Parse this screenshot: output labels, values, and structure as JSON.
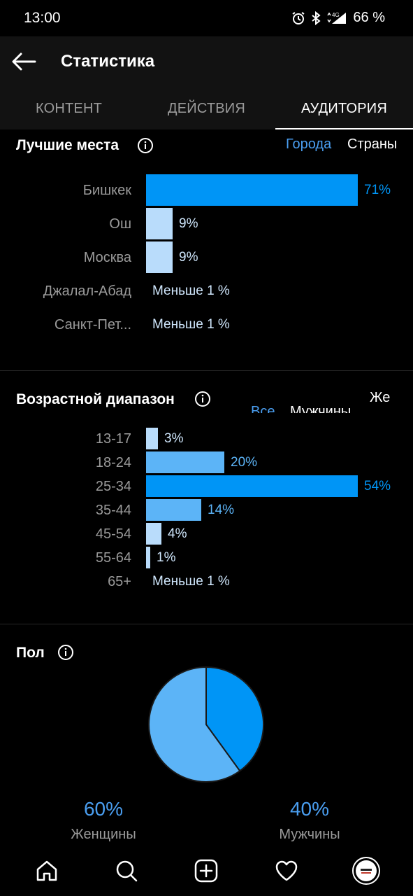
{
  "status": {
    "time": "13:00",
    "battery": "66 %",
    "network": "4G"
  },
  "header": {
    "title": "Статистика"
  },
  "tabs": [
    {
      "label": "КОНТЕНТ",
      "active": false
    },
    {
      "label": "ДЕЙСТВИЯ",
      "active": false
    },
    {
      "label": "АУДИТОРИЯ",
      "active": true
    }
  ],
  "top_places": {
    "title": "Лучшие места",
    "filter_cities": "Города",
    "filter_countries": "Страны",
    "rows": [
      {
        "label": "Бишкек",
        "value": "71%",
        "pct": 71
      },
      {
        "label": "Ош",
        "value": "9%",
        "pct": 9
      },
      {
        "label": "Москва",
        "value": "9%",
        "pct": 9
      },
      {
        "label": "Джалал-Абад",
        "value": "Меньше 1 %",
        "pct": 0
      },
      {
        "label": "Санкт-Пет...",
        "value": "Меньше 1 %",
        "pct": 0
      }
    ]
  },
  "age_range": {
    "title": "Возрастной диапазон",
    "filter_all": "Все",
    "filter_men": "Мужчины",
    "filter_women": "Же",
    "rows": [
      {
        "label": "13-17",
        "value": "3%",
        "pct": 3
      },
      {
        "label": "18-24",
        "value": "20%",
        "pct": 20
      },
      {
        "label": "25-34",
        "value": "54%",
        "pct": 54
      },
      {
        "label": "35-44",
        "value": "14%",
        "pct": 14
      },
      {
        "label": "45-54",
        "value": "4%",
        "pct": 4
      },
      {
        "label": "55-64",
        "value": "1%",
        "pct": 1
      },
      {
        "label": "65+",
        "value": "Меньше 1 %",
        "pct": 0
      }
    ]
  },
  "gender": {
    "title": "Пол",
    "women_pct": "60%",
    "women_label": "Женщины",
    "men_pct": "40%",
    "men_label": "Мужчины",
    "women_value": 60,
    "men_value": 40
  },
  "colors": {
    "accent": "#0095f6",
    "light_bar": "#b9dcfb",
    "mid_bar": "#5cb4f7",
    "pie_women": "#5cb4f7",
    "pie_men": "#0095f6"
  },
  "nav": [
    "home-icon",
    "search-icon",
    "add-icon",
    "heart-icon",
    "profile-avatar"
  ]
}
